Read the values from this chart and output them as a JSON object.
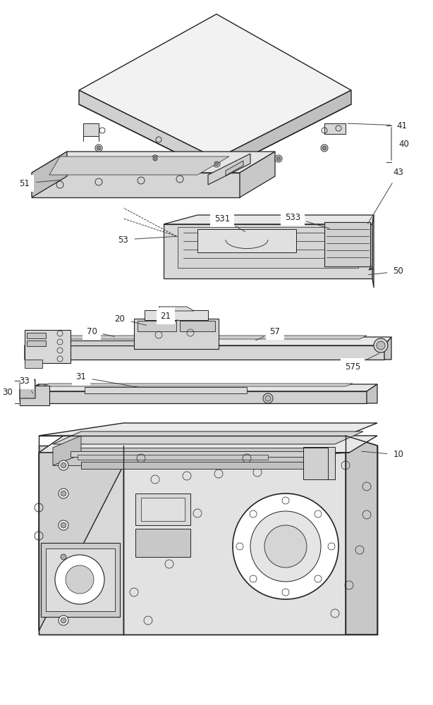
{
  "background_color": "#ffffff",
  "line_color": "#222222",
  "label_color": "#222222",
  "label_fontsize": 8.5,
  "lw_main": 0.9,
  "lw_thin": 0.5,
  "fig_w": 6.14,
  "fig_h": 10.0,
  "dpi": 100
}
